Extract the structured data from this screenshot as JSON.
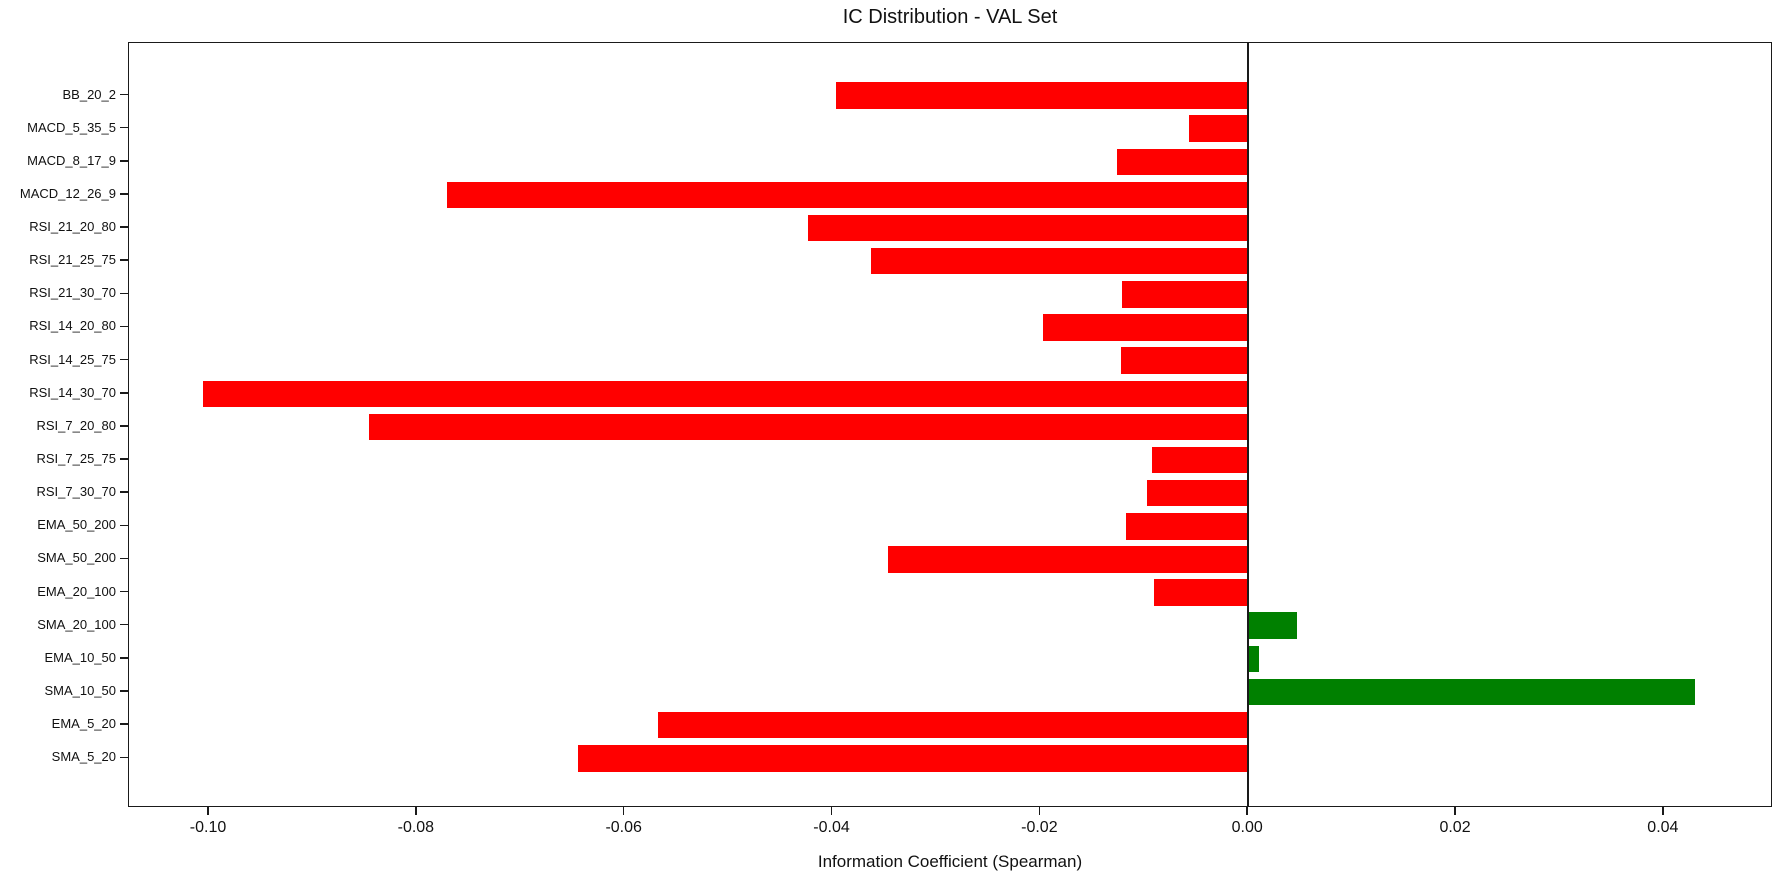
{
  "chart_data": {
    "type": "bar",
    "orientation": "horizontal",
    "title": "IC Distribution - VAL Set",
    "xlabel": "Information Coefficient (Spearman)",
    "ylabel": "",
    "categories_top_to_bottom": [
      "BB_20_2",
      "MACD_5_35_5",
      "MACD_8_17_9",
      "MACD_12_26_9",
      "RSI_21_20_80",
      "RSI_21_25_75",
      "RSI_21_30_70",
      "RSI_14_20_80",
      "RSI_14_25_75",
      "RSI_14_30_70",
      "RSI_7_20_80",
      "RSI_7_25_75",
      "RSI_7_30_70",
      "EMA_50_200",
      "SMA_50_200",
      "EMA_20_100",
      "SMA_20_100",
      "EMA_10_50",
      "SMA_10_50",
      "EMA_5_20",
      "SMA_5_20"
    ],
    "values": [
      -0.0397,
      -0.0057,
      -0.0126,
      -0.0771,
      -0.0424,
      -0.0363,
      -0.0121,
      -0.0197,
      -0.0122,
      -0.1006,
      -0.0846,
      -0.0093,
      -0.0097,
      -0.0118,
      -0.0347,
      -0.0091,
      0.0047,
      0.001,
      0.043,
      -0.0568,
      -0.0645
    ],
    "xlim": [
      -0.1077,
      0.0505
    ],
    "xticks": [
      -0.1,
      -0.08,
      -0.06,
      -0.04,
      -0.02,
      0.0,
      0.02,
      0.04
    ],
    "xtick_labels": [
      "-0.10",
      "-0.08",
      "-0.06",
      "-0.04",
      "-0.02",
      "0.00",
      "0.02",
      "0.04"
    ],
    "grid": false,
    "legend": null,
    "zero_line": true,
    "colors": {
      "negative": "#ff0000",
      "positive": "#008000"
    }
  }
}
